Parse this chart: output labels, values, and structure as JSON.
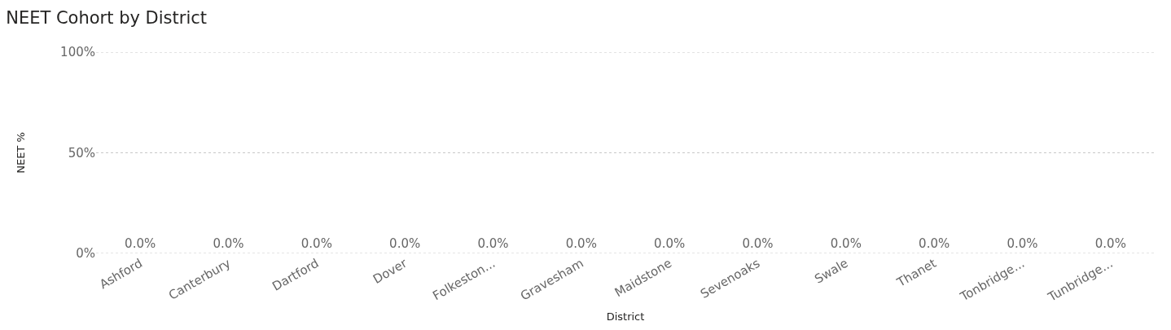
{
  "chart_data": {
    "type": "bar",
    "title": "NEET Cohort by District",
    "xlabel": "District",
    "ylabel": "NEET %",
    "categories": [
      "Ashford",
      "Canterbury",
      "Dartford",
      "Dover",
      "Folkeston...",
      "Gravesham",
      "Maidstone",
      "Sevenoaks",
      "Swale",
      "Thanet",
      "Tonbridge...",
      "Tunbridge..."
    ],
    "values": [
      0,
      0,
      0,
      0,
      0,
      0,
      0,
      0,
      0,
      0,
      0,
      0
    ],
    "value_labels": [
      "0.0%",
      "0.0%",
      "0.0%",
      "0.0%",
      "0.0%",
      "0.0%",
      "0.0%",
      "0.0%",
      "0.0%",
      "0.0%",
      "0.0%",
      "0.0%"
    ],
    "ylim": [
      0,
      100
    ],
    "yticks": [
      {
        "value": 0,
        "label": "0%"
      },
      {
        "value": 50,
        "label": "50%"
      },
      {
        "value": 100,
        "label": "100%"
      }
    ],
    "grid": "y",
    "legend": false
  }
}
